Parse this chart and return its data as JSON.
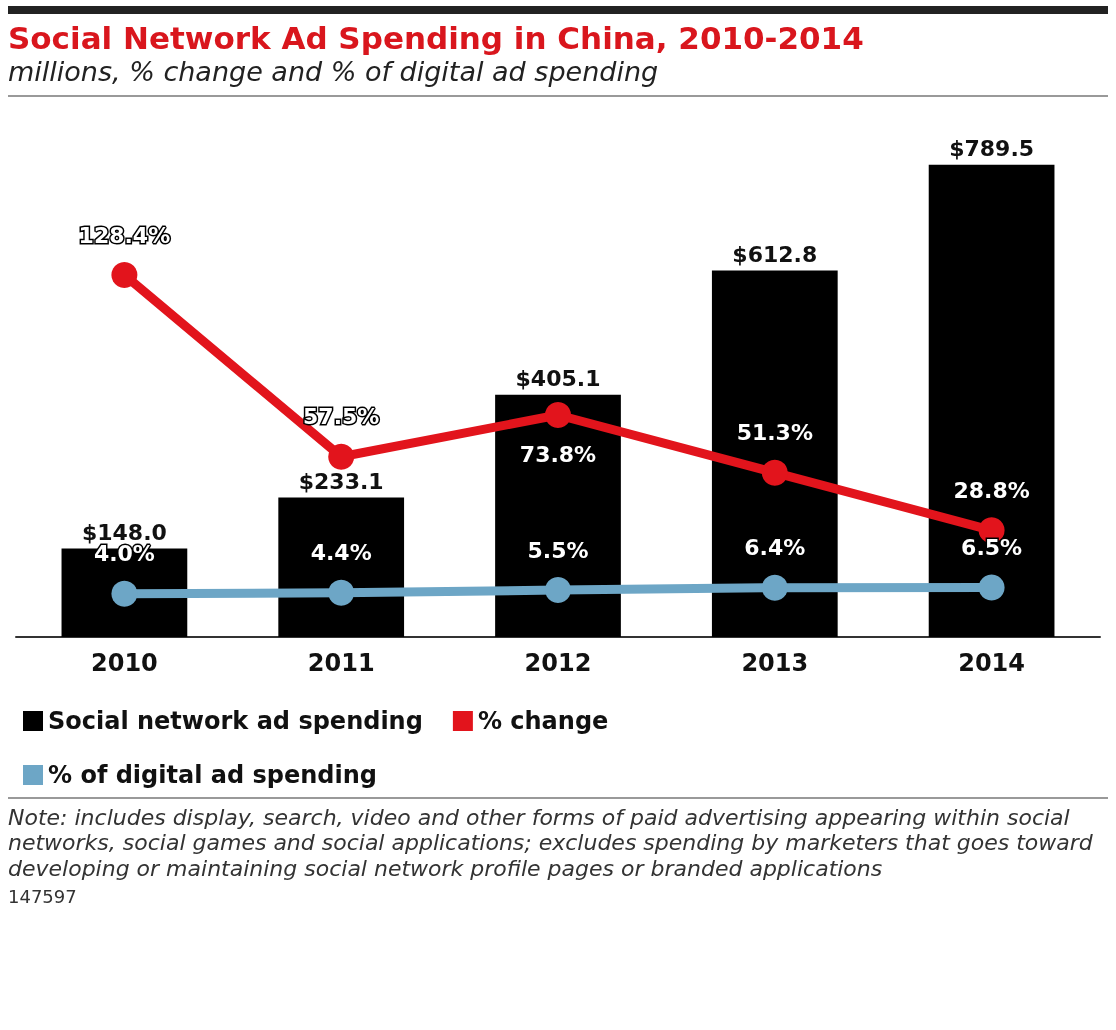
{
  "chart_data": {
    "type": "bar",
    "title": "Social Network Ad Spending in China, 2010-2014",
    "subtitle": "millions, % change and % of digital ad spending",
    "categories": [
      "2010",
      "2011",
      "2012",
      "2013",
      "2014"
    ],
    "series": [
      {
        "name": "Social network ad spending",
        "color": "#000000",
        "values": [
          148.0,
          233.1,
          405.1,
          612.8,
          789.5
        ],
        "value_labels": [
          "$148.0",
          "$233.1",
          "$405.1",
          "$612.8",
          "$789.5"
        ]
      },
      {
        "name": "% change",
        "type": "line",
        "axis": "y2",
        "color": "#e2141c",
        "values": [
          128.4,
          57.5,
          73.8,
          51.3,
          28.8
        ],
        "value_labels": [
          "128.4%",
          "57.5%",
          "73.8%",
          "51.3%",
          "28.8%"
        ]
      },
      {
        "name": "% of digital ad spending",
        "type": "line",
        "axis": "y2",
        "color": "#6da6c6",
        "values": [
          4.0,
          4.4,
          5.5,
          6.4,
          6.5
        ],
        "value_labels": [
          "4.0%",
          "4.4%",
          "5.5%",
          "6.4%",
          "6.5%"
        ]
      }
    ],
    "tick_labels": "x",
    "legend": "bottom left",
    "marker": "circle",
    "line_style": "solid",
    "annotations": [
      "Note: includes display, search, video and other forms of paid advertising appearing within social networks, social games and social applications; excludes spending by marketers that goes toward developing or maintaining social network profile pages or branded applications",
      "147597"
    ]
  }
}
